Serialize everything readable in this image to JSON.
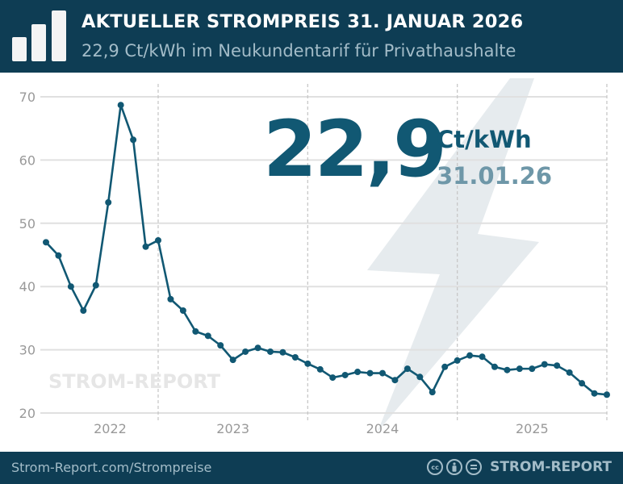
{
  "header": {
    "title": "AKTUELLER STROMPREIS 31. JANUAR 2026",
    "subtitle": "22,9 Ct/kWh im Neukundentarif für Privathaushalte",
    "icon": "bar-chart-logo-icon"
  },
  "highlight": {
    "value": "22,9",
    "unit": "Ct/kWh",
    "date": "31.01.26"
  },
  "watermark": "STROM-REPORT",
  "footer": {
    "link": "Strom-Report.com/Strompreise",
    "brand": "STROM-REPORT",
    "license_icons": [
      "cc-icon",
      "by-icon",
      "nd-icon"
    ],
    "cc_text": "cc"
  },
  "colors": {
    "header_bg": "#0e3d54",
    "line": "#115873",
    "grid": "#e0e0e0",
    "bolt": "#e6ebee"
  },
  "chart_data": {
    "type": "line",
    "ylim": [
      20,
      70
    ],
    "yticks": [
      20,
      30,
      40,
      50,
      60,
      70
    ],
    "ytick_labels": [
      "20",
      "30",
      "40",
      "50",
      "60",
      "70"
    ],
    "xtick_labels": [
      "2022",
      "2023",
      "2024",
      "2025"
    ],
    "x_start": "2022-04",
    "x_end": "2026-01",
    "x_interval": "monthly",
    "grid": true,
    "values": [
      47.0,
      44.9,
      40.0,
      36.2,
      40.2,
      53.3,
      68.7,
      63.2,
      46.3,
      47.3,
      38.0,
      36.2,
      32.9,
      32.2,
      30.7,
      28.4,
      29.7,
      30.3,
      29.7,
      29.6,
      28.8,
      27.8,
      26.9,
      25.6,
      26.0,
      26.5,
      26.3,
      26.3,
      25.2,
      27.0,
      25.7,
      23.3,
      27.3,
      28.3,
      29.1,
      28.9,
      27.3,
      26.8,
      27.0,
      27.0,
      27.7,
      27.5,
      26.4,
      24.7,
      23.1,
      22.9
    ]
  }
}
